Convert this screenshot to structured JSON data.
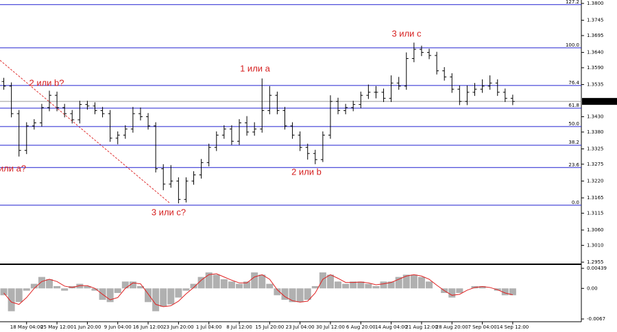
{
  "chart_data": [
    {
      "type": "ohlc",
      "categories": [
        null,
        null,
        null,
        "18 May 04:00",
        null,
        null,
        null,
        "25 May 12:00",
        null,
        null,
        null,
        "1 Jun 20:00",
        null,
        null,
        null,
        "9 Jun 04:00",
        null,
        null,
        null,
        "16 Jun 12:00",
        null,
        null,
        null,
        "23 Jun 20:00",
        null,
        null,
        null,
        "1 Jul 04:00",
        null,
        null,
        null,
        "8 Jul 12:00",
        null,
        null,
        null,
        "15 Jul 20:00",
        null,
        null,
        null,
        "23 Jul 04:00",
        null,
        null,
        null,
        "30 Jul 12:00",
        null,
        null,
        null,
        "6 Aug 20:00",
        null,
        null,
        null,
        "14 Aug 04:00",
        null,
        null,
        null,
        "21 Aug 12:00",
        null,
        null,
        null,
        "28 Aug 20:00",
        null,
        null,
        null,
        "7 Sep 04:00",
        null,
        null,
        null,
        "14 Sep 12:00"
      ],
      "open": [
        1.3545,
        1.353,
        1.344,
        1.332,
        1.34,
        1.341,
        1.346,
        1.35,
        1.346,
        1.344,
        1.342,
        1.347,
        1.3465,
        1.345,
        1.344,
        1.336,
        1.337,
        1.339,
        1.344,
        1.343,
        1.34,
        1.326,
        1.321,
        1.322,
        1.316,
        1.322,
        1.324,
        1.328,
        1.333,
        1.337,
        1.339,
        1.335,
        1.341,
        1.338,
        1.339,
        1.345,
        1.35,
        1.345,
        1.34,
        1.337,
        1.333,
        1.331,
        1.329,
        1.337,
        1.348,
        1.345,
        1.346,
        1.347,
        1.35,
        1.351,
        1.351,
        1.349,
        1.354,
        1.353,
        1.362,
        1.365,
        1.364,
        1.363,
        1.358,
        1.356,
        1.352,
        1.348,
        1.351,
        1.352,
        1.353,
        1.354,
        1.351,
        1.349
      ],
      "high": [
        1.3557,
        1.3542,
        1.3452,
        1.3412,
        1.3422,
        1.3472,
        1.3515,
        1.3512,
        1.3472,
        1.3452,
        1.3482,
        1.3482,
        1.3477,
        1.3462,
        1.3452,
        1.3382,
        1.3402,
        1.3462,
        1.346,
        1.3442,
        1.3412,
        1.3275,
        1.3272,
        1.3232,
        1.3232,
        1.3252,
        1.3292,
        1.3342,
        1.3382,
        1.3402,
        1.3402,
        1.3422,
        1.3432,
        1.3412,
        1.3555,
        1.353,
        1.3512,
        1.3462,
        1.3412,
        1.3382,
        1.3342,
        1.3322,
        1.3382,
        1.35,
        1.3492,
        1.3472,
        1.3482,
        1.3512,
        1.3535,
        1.353,
        1.3522,
        1.3565,
        1.356,
        1.364,
        1.3672,
        1.3662,
        1.3652,
        1.3642,
        1.3592,
        1.3572,
        1.3532,
        1.3532,
        1.354,
        1.3552,
        1.3565,
        1.3552,
        1.3522,
        1.3502
      ],
      "low": [
        1.3518,
        1.3428,
        1.33,
        1.3308,
        1.3388,
        1.3398,
        1.3448,
        1.3448,
        1.3428,
        1.3408,
        1.3408,
        1.3453,
        1.3438,
        1.3428,
        1.3348,
        1.334,
        1.3358,
        1.3378,
        1.3418,
        1.3388,
        1.3248,
        1.319,
        1.3198,
        1.3147,
        1.315,
        1.3208,
        1.3228,
        1.3268,
        1.3318,
        1.3358,
        1.3338,
        1.3338,
        1.3368,
        1.3368,
        1.3378,
        1.3438,
        1.3438,
        1.3388,
        1.3358,
        1.3318,
        1.329,
        1.3275,
        1.3282,
        1.3358,
        1.3438,
        1.3438,
        1.3448,
        1.3458,
        1.3488,
        1.349,
        1.3478,
        1.3478,
        1.3518,
        1.3518,
        1.3608,
        1.3628,
        1.3618,
        1.3568,
        1.3548,
        1.3508,
        1.3468,
        1.3468,
        1.3498,
        1.3508,
        1.3518,
        1.3498,
        1.3478,
        1.3468
      ],
      "close": [
        1.353,
        1.344,
        1.332,
        1.34,
        1.341,
        1.346,
        1.35,
        1.346,
        1.344,
        1.342,
        1.347,
        1.3465,
        1.345,
        1.344,
        1.336,
        1.337,
        1.339,
        1.344,
        1.343,
        1.34,
        1.326,
        1.321,
        1.322,
        1.316,
        1.322,
        1.324,
        1.328,
        1.333,
        1.337,
        1.339,
        1.335,
        1.341,
        1.338,
        1.339,
        1.345,
        1.35,
        1.345,
        1.34,
        1.337,
        1.333,
        1.331,
        1.329,
        1.337,
        1.348,
        1.345,
        1.346,
        1.347,
        1.35,
        1.351,
        1.351,
        1.349,
        1.354,
        1.353,
        1.362,
        1.365,
        1.364,
        1.363,
        1.358,
        1.356,
        1.352,
        1.348,
        1.351,
        1.352,
        1.353,
        1.354,
        1.351,
        1.349,
        1.348
      ],
      "color": "#000000",
      "ylim": [
        1.2955,
        1.38
      ],
      "yticks": [
        {
          "value": 1.38,
          "label": "1.3800"
        },
        1.3745,
        1.3695,
        {
          "value": 1.364,
          "label": "1.3640"
        },
        {
          "value": 1.359,
          "label": "1.3590"
        },
        1.3535,
        {
          "value": 1.343,
          "label": "1.3430"
        },
        {
          "value": 1.338,
          "label": "1.3380"
        },
        1.3325,
        1.3275,
        {
          "value": 1.322,
          "label": "1.3220"
        },
        1.3165,
        1.3115,
        {
          "value": 1.306,
          "label": "1.3060"
        },
        {
          "value": 1.301,
          "label": "1.3010"
        },
        1.2955
      ],
      "last_price": {
        "value": 1.348,
        "label": "1.3480"
      },
      "levels": [
        {
          "label": "127.2",
          "price": 1.3796
        },
        {
          "label": "100.0",
          "price": 1.3655
        },
        {
          "label": "76.4",
          "price": 1.3532
        },
        {
          "label": "61.8",
          "price": 1.3458
        },
        {
          "label": "50.0",
          "price": 1.3398
        },
        {
          "label": "38.2",
          "price": 1.3337
        },
        {
          "label": "23.6",
          "price": 1.3264
        },
        {
          "label": "0.0",
          "price": 1.3141
        }
      ],
      "level_color": "#2020d0",
      "annotations": [
        "2 или b?",
        "1 или a",
        "3 или с",
        "2 или b",
        "3 или с?",
        "или а?"
      ]
    },
    {
      "type": "oscillator",
      "histogram": {
        "color": "#b0b0b0",
        "values": [
          -0.0015,
          -0.005,
          -0.003,
          -0.0005,
          0.001,
          0.0025,
          0.002,
          0.0005,
          -0.0005,
          0.0005,
          0.001,
          0.0005,
          -0.0005,
          -0.0025,
          -0.003,
          -0.001,
          0.0015,
          0.0015,
          0.0005,
          -0.003,
          -0.005,
          -0.004,
          -0.0035,
          -0.002,
          -0.0005,
          0.001,
          0.0025,
          0.0035,
          0.003,
          0.002,
          0.0015,
          0.001,
          0.0015,
          0.0035,
          0.003,
          0.001,
          -0.0015,
          -0.0025,
          -0.003,
          -0.003,
          -0.0025,
          0.0005,
          0.0035,
          0.003,
          0.0015,
          0.001,
          0.0015,
          0.0015,
          0.001,
          0.0005,
          0.0015,
          0.0015,
          0.0025,
          0.003,
          0.003,
          0.0025,
          0.0015,
          0,
          -0.001,
          -0.002,
          -0.001,
          0,
          0.0005,
          0.0005,
          0,
          -0.0005,
          -0.0015,
          -0.0015
        ]
      },
      "signal": {
        "color": "#e02020",
        "values": [
          -0.001,
          -0.003,
          -0.0035,
          -0.002,
          0,
          0.0015,
          0.002,
          0.0015,
          0.0005,
          0.0002,
          0.0006,
          0.0006,
          0,
          -0.0013,
          -0.0025,
          -0.002,
          0,
          0.0012,
          0.001,
          -0.0012,
          -0.0035,
          -0.004,
          -0.0038,
          -0.0028,
          -0.0012,
          0.0002,
          0.0018,
          0.003,
          0.0032,
          0.0025,
          0.0018,
          0.0012,
          0.0012,
          0.0025,
          0.003,
          0.002,
          -0.0003,
          -0.0018,
          -0.0027,
          -0.003,
          -0.0028,
          -0.001,
          0.002,
          0.003,
          0.0022,
          0.0013,
          0.0013,
          0.0014,
          0.0012,
          0.0008,
          0.001,
          0.0013,
          0.002,
          0.0027,
          0.003,
          0.0027,
          0.002,
          0.0007,
          -0.0005,
          -0.0015,
          -0.0013,
          -0.0004,
          0.0002,
          0.0004,
          0.0002,
          -0.0003,
          -0.001,
          -0.0014
        ]
      },
      "ylim": [
        -0.0067,
        0.00439
      ],
      "yticks": [
        0.00439,
        {
          "value": 0,
          "label": "0.00"
        },
        -0.0067
      ]
    }
  ]
}
